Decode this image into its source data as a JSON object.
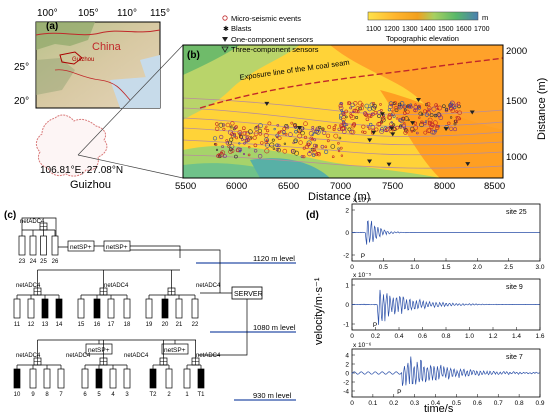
{
  "panel_labels": {
    "a": "(a)",
    "b": "(b)",
    "c": "(c)",
    "d": "(d)"
  },
  "panel_a": {
    "lon_ticks": [
      "100°",
      "105°",
      "110°",
      "115°"
    ],
    "lat_ticks": [
      "25°",
      "20°"
    ],
    "lat_top": "25°",
    "country_label": "China",
    "province_small": "Guizhou",
    "site_coord": "106.81°E, 27.08°N",
    "province_label": "Guizhou"
  },
  "panel_b": {
    "legend": {
      "micro": "Micro-seismic events",
      "blasts": "Blasts",
      "one_comp": "One-component sensors",
      "three_comp": "Three-component sensors"
    },
    "colorbar": {
      "unit": "m",
      "ticks": [
        "1100",
        "1200",
        "1300",
        "1400",
        "1500",
        "1600",
        "1700"
      ],
      "title": "Topographic elevation"
    },
    "annotation": "Exposure line of the M coal seam",
    "x_ticks": [
      "5500",
      "6000",
      "6500",
      "7000",
      "7500",
      "8000",
      "8500"
    ],
    "x_label": "Distance (m)",
    "y_ticks": [
      "2000",
      "1500",
      "1000"
    ],
    "y_label": "Distance (m)"
  },
  "panel_c": {
    "levels": [
      "1120 m level",
      "1080 m level",
      "930 m level"
    ],
    "nodes": {
      "netADC4_top": "netADC4",
      "netSP_a": "netSP+",
      "netSP_b": "netSP+",
      "netADC4_l": "netADC4",
      "netADC4_m": "netADC4",
      "netADC4_r": "netADC4",
      "server": "SERVER",
      "netADC4_b1": "netADC4",
      "netADC4_b2": "netADC4",
      "netADC4_b3": "netADC4",
      "netADC4_b4": "netADC4",
      "netSP_c": "netSP+",
      "netSP_d": "netSP+"
    },
    "top_sensors": [
      "23",
      "24",
      "25",
      "26"
    ],
    "mid_sensors": [
      "11",
      "12",
      "13",
      "14",
      "15",
      "16",
      "17",
      "18",
      "19",
      "20",
      "21",
      "22"
    ],
    "bottom_sensors": [
      "10",
      "9",
      "8",
      "7",
      "6",
      "5",
      "4",
      "3",
      "T2",
      "2",
      "1",
      "T1"
    ],
    "mid_filled": [
      false,
      false,
      true,
      true,
      false,
      true,
      false,
      false,
      false,
      true,
      false,
      false
    ],
    "bottom_filled": [
      true,
      false,
      false,
      false,
      false,
      true,
      false,
      false,
      true,
      false,
      false,
      true
    ]
  },
  "panel_d": {
    "x_axis_label": "time/s",
    "y_axis_label": "velocity/m·s⁻¹",
    "traces": [
      {
        "site": "site 25",
        "scale": "x 10⁻⁵",
        "pick": "P",
        "y_ticks": [
          "2",
          "0",
          "-2"
        ],
        "x_ticks": [
          "0",
          "0.5",
          "1.0",
          "1.5",
          "2.0",
          "2.5",
          "3.0"
        ],
        "xmax": 3.0,
        "onset": 0.22
      },
      {
        "site": "site 9",
        "scale": "x 10⁻⁵",
        "pick": "P",
        "y_ticks": [
          "1",
          "0",
          "-1"
        ],
        "x_ticks": [
          "0",
          "0.2",
          "0.4",
          "0.6",
          "0.8",
          "1.0",
          "1.2",
          "1.4",
          "1.6"
        ],
        "xmax": 1.6,
        "onset": 0.22
      },
      {
        "site": "site 7",
        "scale": "x 10⁻⁶",
        "pick": "P",
        "y_ticks": [
          "4",
          "2",
          "0",
          "-2",
          "-4"
        ],
        "x_ticks": [
          "0",
          "0.1",
          "0.2",
          "0.3",
          "0.4",
          "0.5",
          "0.6",
          "0.7",
          "0.8",
          "0.9"
        ],
        "xmax": 0.9,
        "onset": 0.24
      }
    ]
  },
  "colors": {
    "accent_blue": "#2a4fa8",
    "event_red": "#c0282a",
    "guizhou_outline": "#d97a7a"
  }
}
